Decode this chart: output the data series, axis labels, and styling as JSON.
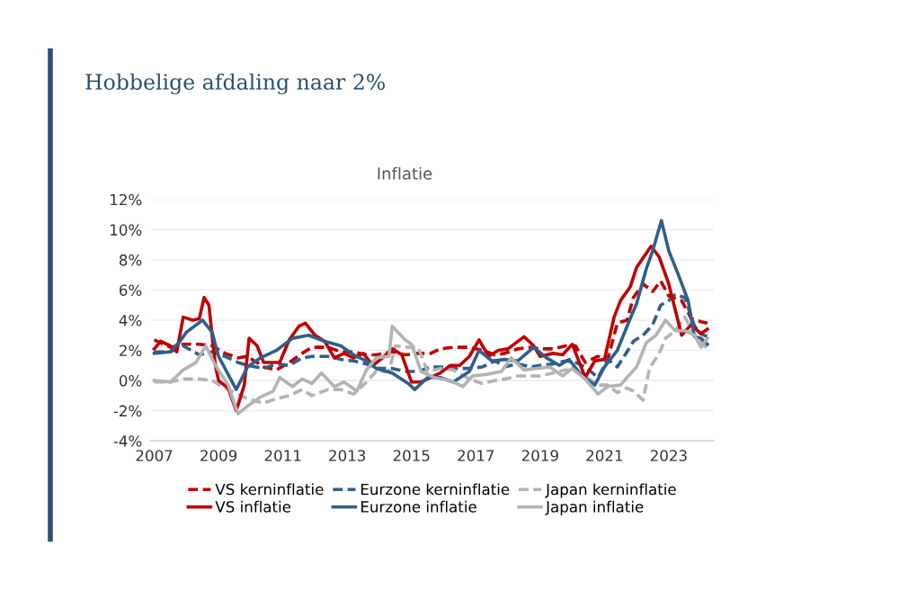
{
  "chart_data": {
    "type": "line",
    "title": "Hobbelige afdaling naar 2%",
    "subtitle": "Inflatie",
    "xlim": [
      2006.9,
      2024.4
    ],
    "xticks": [
      2007,
      2009,
      2011,
      2013,
      2015,
      2017,
      2019,
      2021,
      2023
    ],
    "ylim": [
      -4,
      12
    ],
    "yticks": [
      {
        "value": -4,
        "label": "-4%"
      },
      {
        "value": -2,
        "label": "-2%"
      },
      {
        "value": 0,
        "label": "0%"
      },
      {
        "value": 2,
        "label": "2%"
      },
      {
        "value": 4,
        "label": "4%"
      },
      {
        "value": 6,
        "label": "6%"
      },
      {
        "value": 8,
        "label": "8%"
      },
      {
        "value": 10,
        "label": "10%"
      },
      {
        "value": 12,
        "label": "12%"
      }
    ],
    "grid": "y",
    "legend": "bottom",
    "marker": "none",
    "series": [
      {
        "name": "VS kerninflatie",
        "color": "#c00000",
        "line_style": "dashed",
        "x": [
          2007.0,
          2007.5,
          2007.9,
          2008.4,
          2008.8,
          2009.2,
          2009.6,
          2009.9,
          2010.4,
          2010.8,
          2011.2,
          2011.6,
          2011.9,
          2012.4,
          2012.8,
          2013.2,
          2013.6,
          2013.9,
          2014.4,
          2014.8,
          2015.2,
          2015.6,
          2015.9,
          2016.3,
          2016.8,
          2017.2,
          2017.6,
          2017.9,
          2018.3,
          2018.7,
          2019.0,
          2019.4,
          2019.8,
          2020.1,
          2020.4,
          2020.8,
          2021.1,
          2021.4,
          2021.7,
          2021.9,
          2022.2,
          2022.5,
          2022.75,
          2023.0,
          2023.4,
          2023.7,
          2024.0,
          2024.2
        ],
        "values": [
          2.7,
          2.2,
          2.4,
          2.4,
          2.3,
          1.8,
          1.5,
          1.6,
          0.9,
          0.7,
          1.2,
          1.8,
          2.2,
          2.2,
          1.9,
          1.9,
          1.7,
          1.7,
          1.9,
          1.7,
          1.8,
          1.8,
          2.1,
          2.2,
          2.2,
          2.0,
          1.7,
          1.8,
          2.1,
          2.2,
          2.1,
          2.1,
          2.3,
          2.3,
          1.2,
          1.6,
          1.4,
          3.8,
          4.0,
          5.5,
          6.4,
          5.9,
          6.6,
          5.6,
          5.3,
          4.1,
          3.9,
          3.8
        ]
      },
      {
        "name": "Eurzone kerninflatie",
        "color": "#2f5f8a",
        "line_style": "dashed",
        "x": [
          2007.0,
          2007.5,
          2007.9,
          2008.4,
          2008.8,
          2009.2,
          2009.6,
          2009.9,
          2010.4,
          2010.8,
          2011.2,
          2011.6,
          2011.9,
          2012.4,
          2012.8,
          2013.2,
          2013.6,
          2013.9,
          2014.4,
          2014.8,
          2015.2,
          2015.6,
          2015.9,
          2016.3,
          2016.8,
          2017.2,
          2017.6,
          2017.9,
          2018.3,
          2018.7,
          2019.0,
          2019.4,
          2019.8,
          2020.1,
          2020.4,
          2020.8,
          2021.1,
          2021.4,
          2021.7,
          2021.9,
          2022.2,
          2022.5,
          2022.75,
          2023.0,
          2023.2,
          2023.5,
          2023.8,
          2024.0,
          2024.2
        ],
        "values": [
          1.9,
          1.9,
          2.3,
          1.7,
          1.9,
          1.6,
          1.2,
          1.0,
          0.8,
          1.1,
          1.0,
          1.5,
          1.6,
          1.6,
          1.4,
          1.3,
          1.1,
          0.8,
          0.8,
          0.6,
          0.6,
          0.9,
          0.9,
          0.8,
          0.8,
          0.9,
          1.3,
          0.9,
          1.1,
          0.9,
          1.0,
          1.1,
          1.3,
          1.2,
          0.9,
          0.2,
          1.4,
          0.9,
          1.9,
          2.6,
          3.0,
          3.7,
          5.0,
          5.3,
          5.7,
          5.5,
          3.6,
          3.1,
          2.9
        ]
      },
      {
        "name": "Japan kerninflatie",
        "color": "#b3b3b3",
        "line_style": "dashed",
        "x": [
          2007.0,
          2007.5,
          2007.9,
          2008.4,
          2008.8,
          2009.2,
          2009.6,
          2009.9,
          2010.4,
          2010.8,
          2011.2,
          2011.6,
          2011.9,
          2012.4,
          2012.8,
          2013.2,
          2013.6,
          2013.9,
          2014.3,
          2014.5,
          2014.9,
          2015.2,
          2015.5,
          2015.9,
          2016.3,
          2016.8,
          2017.2,
          2017.6,
          2017.9,
          2018.3,
          2018.7,
          2019.0,
          2019.4,
          2019.8,
          2020.1,
          2020.4,
          2020.8,
          2021.1,
          2021.4,
          2021.7,
          2021.9,
          2022.2,
          2022.4,
          2022.7,
          2022.9,
          2023.2,
          2023.5,
          2023.8,
          2024.0,
          2024.2
        ],
        "values": [
          -0.1,
          -0.1,
          0.1,
          0.1,
          0.0,
          -0.5,
          -0.9,
          -1.2,
          -1.5,
          -1.2,
          -1.0,
          -0.6,
          -1.0,
          -0.6,
          -0.6,
          -0.9,
          -0.1,
          0.6,
          0.6,
          2.3,
          2.2,
          2.2,
          0.6,
          0.8,
          0.7,
          0.1,
          -0.2,
          0.0,
          0.1,
          0.3,
          0.3,
          0.3,
          0.5,
          0.7,
          0.6,
          0.3,
          -0.3,
          -0.3,
          -0.8,
          -0.5,
          -0.7,
          -1.3,
          0.8,
          1.8,
          2.8,
          3.3,
          4.2,
          3.0,
          2.6,
          2.1
        ]
      },
      {
        "name": "VS inflatie",
        "color": "#c00000",
        "line_style": "solid",
        "x": [
          2007.0,
          2007.2,
          2007.5,
          2007.7,
          2007.9,
          2008.2,
          2008.4,
          2008.55,
          2008.7,
          2008.9,
          2009.0,
          2009.3,
          2009.55,
          2009.8,
          2009.95,
          2010.2,
          2010.4,
          2010.6,
          2010.9,
          2011.2,
          2011.5,
          2011.7,
          2012.0,
          2012.3,
          2012.6,
          2012.9,
          2013.2,
          2013.5,
          2013.8,
          2014.1,
          2014.4,
          2014.7,
          2015.0,
          2015.3,
          2015.6,
          2015.9,
          2016.2,
          2016.5,
          2016.8,
          2017.1,
          2017.4,
          2017.7,
          2018.0,
          2018.5,
          2018.8,
          2019.0,
          2019.4,
          2019.7,
          2020.0,
          2020.4,
          2020.7,
          2021.0,
          2021.3,
          2021.5,
          2021.8,
          2022.0,
          2022.45,
          2022.7,
          2023.0,
          2023.4,
          2023.7,
          2024.0,
          2024.2
        ],
        "values": [
          2.1,
          2.6,
          2.3,
          1.9,
          4.2,
          4.0,
          4.1,
          5.5,
          5.0,
          1.0,
          0.0,
          -0.5,
          -2.0,
          -0.3,
          2.8,
          2.3,
          1.2,
          1.2,
          1.2,
          2.7,
          3.6,
          3.8,
          3.0,
          2.6,
          1.5,
          1.8,
          1.5,
          1.8,
          1.0,
          1.5,
          2.1,
          1.7,
          -0.1,
          -0.1,
          0.2,
          0.5,
          1.0,
          1.0,
          1.6,
          2.7,
          1.6,
          2.0,
          2.1,
          2.9,
          2.3,
          1.6,
          1.8,
          1.7,
          2.4,
          0.2,
          1.3,
          1.4,
          4.2,
          5.3,
          6.2,
          7.5,
          8.9,
          8.2,
          6.4,
          3.0,
          3.7,
          3.1,
          3.4
        ]
      },
      {
        "name": "Eurzone inflatie",
        "color": "#2f5f8a",
        "line_style": "solid",
        "x": [
          2007.0,
          2007.5,
          2007.8,
          2008.0,
          2008.5,
          2008.8,
          2009.0,
          2009.4,
          2009.55,
          2009.9,
          2010.3,
          2010.8,
          2011.3,
          2011.8,
          2012.3,
          2012.8,
          2013.2,
          2013.6,
          2013.9,
          2014.4,
          2014.9,
          2015.1,
          2015.5,
          2015.9,
          2016.3,
          2016.8,
          2017.1,
          2017.5,
          2017.9,
          2018.3,
          2018.8,
          2019.2,
          2019.6,
          2019.9,
          2020.3,
          2020.7,
          2021.0,
          2021.4,
          2021.8,
          2022.0,
          2022.3,
          2022.5,
          2022.77,
          2023.0,
          2023.3,
          2023.6,
          2023.8,
          2024.0,
          2024.2
        ],
        "values": [
          1.8,
          1.9,
          2.6,
          3.2,
          4.0,
          3.2,
          1.6,
          0.0,
          -0.6,
          0.9,
          1.5,
          2.0,
          2.8,
          3.0,
          2.6,
          2.3,
          1.7,
          1.3,
          0.8,
          0.5,
          -0.2,
          -0.6,
          0.2,
          0.2,
          -0.1,
          0.6,
          2.0,
          1.3,
          1.4,
          1.3,
          2.2,
          1.5,
          1.0,
          1.4,
          0.3,
          -0.3,
          0.9,
          2.0,
          4.1,
          5.1,
          7.4,
          8.6,
          10.6,
          8.6,
          7.0,
          5.3,
          2.9,
          2.8,
          2.4
        ]
      },
      {
        "name": "Japan inflatie",
        "color": "#b3b3b3",
        "line_style": "solid",
        "x": [
          2007.0,
          2007.5,
          2007.9,
          2008.3,
          2008.6,
          2008.9,
          2009.3,
          2009.6,
          2009.9,
          2010.3,
          2010.7,
          2010.9,
          2011.3,
          2011.6,
          2011.9,
          2012.2,
          2012.6,
          2012.9,
          2013.3,
          2013.6,
          2013.9,
          2014.3,
          2014.4,
          2014.8,
          2015.0,
          2015.3,
          2015.7,
          2016.2,
          2016.6,
          2016.9,
          2017.3,
          2017.8,
          2018.1,
          2018.5,
          2018.9,
          2019.3,
          2019.7,
          2020.0,
          2020.4,
          2020.8,
          2021.1,
          2021.5,
          2021.7,
          2022.0,
          2022.3,
          2022.6,
          2022.9,
          2023.2,
          2023.5,
          2023.8,
          2024.0,
          2024.2
        ],
        "values": [
          0.0,
          -0.1,
          0.7,
          1.2,
          2.3,
          1.0,
          -0.3,
          -2.2,
          -1.7,
          -1.1,
          -0.7,
          0.2,
          -0.4,
          0.1,
          -0.2,
          0.5,
          -0.4,
          -0.1,
          -0.7,
          0.7,
          1.5,
          1.6,
          3.6,
          2.7,
          2.4,
          0.6,
          0.2,
          0.0,
          -0.4,
          0.3,
          0.4,
          0.6,
          1.5,
          0.7,
          0.8,
          0.9,
          0.3,
          0.8,
          0.1,
          -0.9,
          -0.4,
          -0.3,
          0.2,
          0.9,
          2.5,
          3.0,
          4.0,
          3.3,
          3.3,
          3.0,
          2.2,
          2.8
        ]
      }
    ]
  }
}
